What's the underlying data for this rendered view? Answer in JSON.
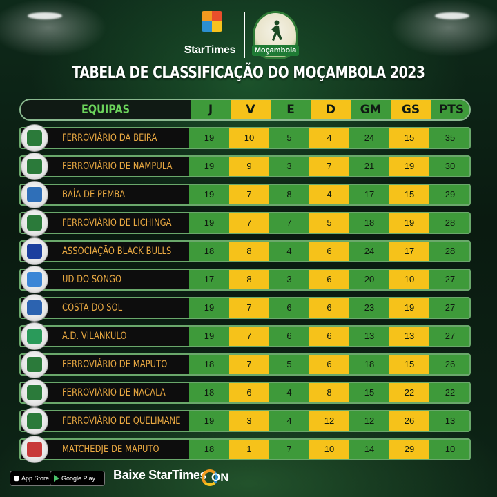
{
  "header": {
    "brand": "StarTimes",
    "league_logo_text": "Moçambola",
    "title": "TABELA DE CLASSIFICAÇÃO DO MOÇAMBOLA 2023"
  },
  "table": {
    "team_header": "EQUIPAS",
    "columns": [
      "J",
      "V",
      "E",
      "D",
      "GM",
      "GS",
      "PTS"
    ],
    "rows": [
      {
        "team": "FERROVIÁRIO DA BEIRA",
        "J": "19",
        "V": "10",
        "E": "5",
        "D": "4",
        "GM": "24",
        "GS": "15",
        "PTS": "35",
        "badge_color": "#2b7a3a"
      },
      {
        "team": "FERROVIÁRIO DE NAMPULA",
        "J": "19",
        "V": "9",
        "E": "3",
        "D": "7",
        "GM": "21",
        "GS": "19",
        "PTS": "30",
        "badge_color": "#2b7a3a"
      },
      {
        "team": "BAÍA DE PEMBA",
        "J": "19",
        "V": "7",
        "E": "8",
        "D": "4",
        "GM": "17",
        "GS": "15",
        "PTS": "29",
        "badge_color": "#2f6fb8"
      },
      {
        "team": "FERROVIÁRIO DE LICHINGA",
        "J": "19",
        "V": "7",
        "E": "7",
        "D": "5",
        "GM": "18",
        "GS": "19",
        "PTS": "28",
        "badge_color": "#2b7a3a"
      },
      {
        "team": "ASSOCIAÇÃO BLACK BULLS",
        "J": "18",
        "V": "8",
        "E": "4",
        "D": "6",
        "GM": "24",
        "GS": "17",
        "PTS": "28",
        "badge_color": "#1c3f9e"
      },
      {
        "team": "UD DO SONGO",
        "J": "17",
        "V": "8",
        "E": "3",
        "D": "6",
        "GM": "20",
        "GS": "10",
        "PTS": "27",
        "badge_color": "#3b86d6"
      },
      {
        "team": "COSTA DO SOL",
        "J": "19",
        "V": "7",
        "E": "6",
        "D": "6",
        "GM": "23",
        "GS": "19",
        "PTS": "27",
        "badge_color": "#2c63b0"
      },
      {
        "team": "A.D. VILANKULO",
        "J": "19",
        "V": "7",
        "E": "6",
        "D": "6",
        "GM": "13",
        "GS": "13",
        "PTS": "27",
        "badge_color": "#2a9a5a"
      },
      {
        "team": "FERROVIÁRIO DE MAPUTO",
        "J": "18",
        "V": "7",
        "E": "5",
        "D": "6",
        "GM": "18",
        "GS": "15",
        "PTS": "26",
        "badge_color": "#2b7a3a"
      },
      {
        "team": "FERROVIÁRIO DE NACALA",
        "J": "18",
        "V": "6",
        "E": "4",
        "D": "8",
        "GM": "15",
        "GS": "22",
        "PTS": "22",
        "badge_color": "#2b7a3a"
      },
      {
        "team": "FERROVIÁRIO DE QUELIMANE",
        "J": "19",
        "V": "3",
        "E": "4",
        "D": "12",
        "GM": "12",
        "GS": "26",
        "PTS": "13",
        "badge_color": "#2b7a3a"
      },
      {
        "team": "MATCHEDJE DE MAPUTO",
        "J": "18",
        "V": "1",
        "E": "7",
        "D": "10",
        "GM": "14",
        "GS": "29",
        "PTS": "10",
        "badge_color": "#c83a3a"
      }
    ]
  },
  "footer": {
    "app_store": "App Store",
    "google_play": "Google Play",
    "cta": "Baixe StarTimes",
    "on_logo": "ON"
  },
  "colors": {
    "green_cell": "#3e9a3a",
    "yellow_cell": "#f6c21a",
    "team_text": "#e9a942",
    "header_green_text": "#6bd35b"
  }
}
